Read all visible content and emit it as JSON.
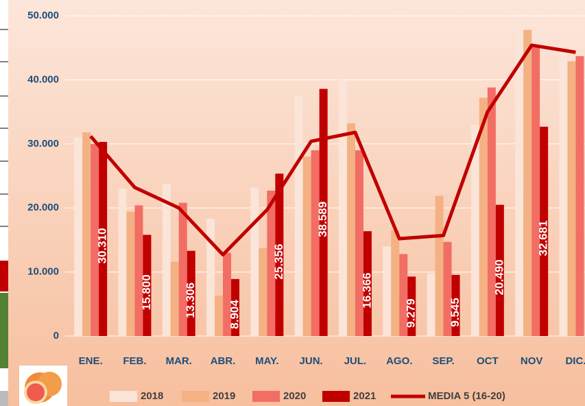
{
  "chart_data": {
    "type": "bar",
    "categories": [
      "ENE.",
      "FEB.",
      "MAR.",
      "ABR.",
      "MAY.",
      "JUN.",
      "JUL.",
      "AGO.",
      "SEP.",
      "OCT",
      "NOV",
      "DIC."
    ],
    "series": [
      {
        "name": "2018",
        "color": "#fbe4d8",
        "values": [
          31000,
          23000,
          23800,
          18300,
          23200,
          37500,
          40000,
          14000,
          9800,
          33000,
          47000,
          45000
        ]
      },
      {
        "name": "2019",
        "color": "#f4b183",
        "values": [
          31800,
          19400,
          11600,
          6300,
          13700,
          28000,
          33200,
          16500,
          21900,
          37200,
          47800,
          42900
        ]
      },
      {
        "name": "2020",
        "color": "#f26d64",
        "values": [
          30000,
          20400,
          20800,
          13000,
          22700,
          29000,
          29000,
          12800,
          14700,
          38800,
          45500,
          43700
        ]
      },
      {
        "name": "2021",
        "color": "#c00000",
        "values": [
          30310,
          15800,
          13306,
          8904,
          25356,
          38589,
          16366,
          9279,
          9545,
          20490,
          32681,
          null
        ],
        "value_labels": [
          "30.310",
          "15.800",
          "13.306",
          "8.904",
          "25.356",
          "38.589",
          "16.366",
          "9.279",
          "9.545",
          "20.490",
          "32.681",
          null
        ]
      },
      {
        "name": "MEDIA 5 (16-20)",
        "type": "line",
        "color": "#c00000",
        "values": [
          31200,
          23200,
          20000,
          12700,
          19700,
          30400,
          31800,
          15200,
          15700,
          35000,
          45400,
          44300
        ]
      }
    ],
    "ylim": [
      0,
      50000
    ],
    "yticks": [
      0,
      {
        "value": 10000,
        "label": "10.000"
      },
      {
        "value": 20000,
        "label": "20.000"
      },
      {
        "value": 30000,
        "label": "30.000"
      },
      {
        "value": 40000,
        "label": "40.000"
      },
      {
        "value": 50000,
        "label": "50.000"
      }
    ],
    "grid": true
  }
}
